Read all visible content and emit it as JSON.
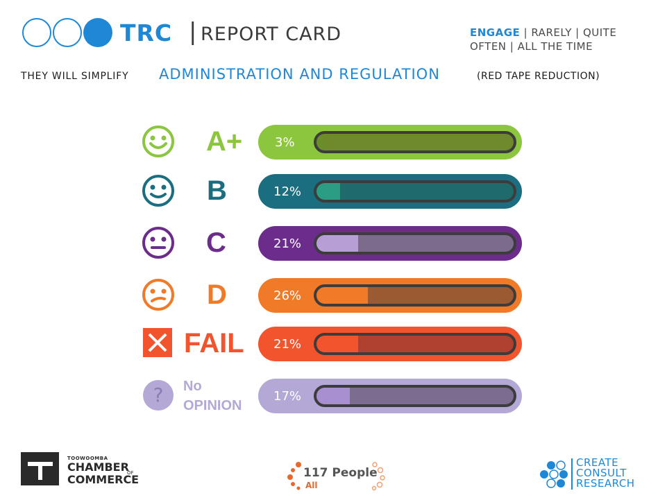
{
  "header": {
    "brand": "TRC",
    "separator": "|",
    "title": "REPORT CARD",
    "engage_highlight": "ENGAGE",
    "engage_rest": " | RARELY | QUITE OFTEN | ALL THE TIME"
  },
  "question": {
    "lead": "THEY WILL SIMPLIFY",
    "main": "ADMINISTRATION AND REGULATION",
    "tail": "(RED TAPE REDUCTION)"
  },
  "chart_data": {
    "type": "bar",
    "categories": [
      "A+",
      "B",
      "C",
      "D",
      "FAIL",
      "No OPINION"
    ],
    "values": [
      3,
      12,
      21,
      26,
      21,
      17
    ],
    "labels": [
      "3%",
      "12%",
      "21%",
      "26%",
      "21%",
      "17%"
    ],
    "ylim": [
      0,
      100
    ],
    "colors": [
      "#8cc63f",
      "#1a6e7f",
      "#6b2c8c",
      "#f07a27",
      "#f2542d",
      "#b3a8d6"
    ],
    "fill_colors": [
      "#6a8f2a",
      "#2a9d84",
      "#b79fd6",
      "#f07a27",
      "#f2542d",
      "#a88fd0"
    ],
    "track_colors": [
      "#6f8a2c",
      "#1f6a6a",
      "#7d6b8e",
      "#9c5a33",
      "#b0402f",
      "#7c6d90"
    ],
    "grade_colors": [
      "#8cc63f",
      "#1a6e7f",
      "#6b2c8c",
      "#f07a27",
      "#f2542d",
      "#b3a8d6"
    ]
  },
  "grades": {
    "a_plus": "A+",
    "b": "B",
    "c": "C",
    "d": "D",
    "fail": "FAIL",
    "no_opinion_1": "No",
    "no_opinion_2": "OPINION"
  },
  "footer": {
    "tw_small": "TOOWOOMBA",
    "tw_chamber": "CHAMBER",
    "tw_of": "OF",
    "tw_commerce": "COMMERCE",
    "people_count": "117 People",
    "people_scope": "All",
    "ccr_1": "CREATE",
    "ccr_2": "CONSULT",
    "ccr_3": "RESEARCH"
  }
}
